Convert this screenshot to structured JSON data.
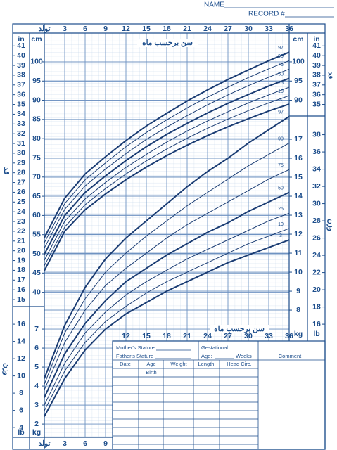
{
  "header": {
    "name_label": "NAME",
    "record_label": "RECORD #"
  },
  "chart_data": [
    {
      "type": "line",
      "xlabel": "سن برحسب ماه",
      "ylabel": "قد",
      "y_unit": "cm",
      "y2_unit": "in",
      "x": [
        0,
        3,
        6,
        9,
        12,
        15,
        18,
        21,
        24,
        27,
        30,
        33,
        36
      ],
      "xlim": [
        0,
        36
      ],
      "xticks": [
        {
          "value": 0,
          "label": "تولد"
        },
        3,
        6,
        9,
        12,
        15,
        18,
        21,
        24,
        27,
        30,
        33,
        36
      ],
      "ylim": [
        37,
        107.5
      ],
      "yticks": [
        40,
        45,
        50,
        55,
        60,
        65,
        70,
        75,
        80,
        85,
        90,
        95,
        100
      ],
      "yticks_right": [
        90,
        95,
        100
      ],
      "y2lim": [
        14.57,
        42.32
      ],
      "y2ticks": [
        15,
        16,
        17,
        18,
        19,
        20,
        21,
        22,
        23,
        24,
        25,
        26,
        27,
        28,
        29,
        30,
        31,
        32,
        33,
        34,
        35,
        36,
        37,
        38,
        39,
        40,
        41
      ],
      "y2ticks_right": [
        35,
        36,
        37,
        38,
        39,
        40,
        41
      ],
      "grid": true,
      "series": [
        {
          "name": "97",
          "color": "#1a3c73",
          "line_width": 2,
          "values": [
            54.2,
            64.5,
            70.8,
            75.3,
            79.5,
            83.3,
            86.6,
            89.8,
            92.7,
            95.4,
            97.9,
            100.3,
            102.5
          ]
        },
        {
          "name": "90",
          "color": "#1a3c73",
          "line_width": 1,
          "values": [
            52.9,
            63.1,
            69.3,
            73.7,
            77.9,
            81.6,
            84.9,
            88.0,
            90.8,
            93.4,
            95.9,
            98.2,
            100.3
          ]
        },
        {
          "name": "75",
          "color": "#1a3c73",
          "line_width": 1,
          "values": [
            51.5,
            61.6,
            67.7,
            72.1,
            76.1,
            79.8,
            83.0,
            86.0,
            88.8,
            91.4,
            93.8,
            96.0,
            98.1
          ]
        },
        {
          "name": "50",
          "color": "#1a3c73",
          "line_width": 2,
          "values": [
            49.9,
            60.0,
            66.0,
            70.3,
            74.3,
            77.9,
            81.1,
            84.0,
            86.7,
            89.2,
            91.5,
            93.7,
            95.7
          ]
        },
        {
          "name": "25",
          "color": "#1a3c73",
          "line_width": 1,
          "values": [
            48.3,
            58.5,
            64.3,
            68.6,
            72.5,
            75.9,
            79.1,
            82.0,
            84.6,
            87.0,
            89.3,
            91.4,
            93.4
          ]
        },
        {
          "name": "10",
          "color": "#1a3c73",
          "line_width": 1,
          "values": [
            46.9,
            57.0,
            62.8,
            67.0,
            70.8,
            74.2,
            77.3,
            80.1,
            82.7,
            85.1,
            87.3,
            89.3,
            91.2
          ]
        },
        {
          "name": "3",
          "color": "#1a3c73",
          "line_width": 2,
          "values": [
            45.6,
            55.9,
            61.5,
            65.6,
            69.3,
            72.6,
            75.6,
            78.3,
            80.8,
            83.1,
            85.2,
            87.2,
            89.0
          ]
        }
      ]
    },
    {
      "type": "line",
      "xlabel": "سن برحسب ماه",
      "ylabel": "وزن",
      "y_unit": "kg",
      "y2_unit": "lb",
      "x": [
        0,
        3,
        6,
        9,
        12,
        15,
        18,
        21,
        24,
        27,
        30,
        33,
        36
      ],
      "xlim": [
        0,
        36
      ],
      "xticks": [
        {
          "value": 0,
          "label": "تولد"
        },
        3,
        6,
        9,
        12,
        15,
        18,
        21,
        24,
        27,
        30,
        33,
        36
      ],
      "ylim": [
        1.3,
        18
      ],
      "yticks": [
        2,
        3,
        4,
        5,
        6,
        7
      ],
      "yticks_right": [
        8,
        9,
        10,
        11,
        12,
        13,
        14,
        15,
        16,
        17
      ],
      "y2lim": [
        2.866,
        39.68
      ],
      "y2ticks": [
        4,
        6,
        8,
        10,
        12,
        14,
        16
      ],
      "y2ticks_right": [
        16,
        18,
        20,
        22,
        24,
        26,
        28,
        30,
        32,
        34,
        36,
        38
      ],
      "grid": true,
      "series": [
        {
          "name": "97",
          "color": "#1a3c73",
          "line_width": 2,
          "values": [
            4.4,
            7.2,
            9.2,
            10.7,
            11.8,
            12.7,
            13.6,
            14.5,
            15.3,
            16.0,
            16.8,
            17.5,
            18.2
          ]
        },
        {
          "name": "90",
          "color": "#1a3c73",
          "line_width": 1,
          "values": [
            4.1,
            6.8,
            8.6,
            10.0,
            11.0,
            11.9,
            12.7,
            13.5,
            14.2,
            14.9,
            15.6,
            16.2,
            16.8
          ]
        },
        {
          "name": "75",
          "color": "#1a3c73",
          "line_width": 1,
          "values": [
            3.8,
            6.3,
            8.0,
            9.3,
            10.2,
            11.0,
            11.8,
            12.5,
            13.1,
            13.7,
            14.3,
            14.9,
            15.4
          ]
        },
        {
          "name": "50",
          "color": "#1a3c73",
          "line_width": 2,
          "values": [
            3.4,
            5.7,
            7.3,
            8.5,
            9.5,
            10.2,
            10.9,
            11.5,
            12.1,
            12.6,
            13.2,
            13.7,
            14.2
          ]
        },
        {
          "name": "25",
          "color": "#1a3c73",
          "line_width": 1,
          "values": [
            3.0,
            5.2,
            6.8,
            7.9,
            8.8,
            9.5,
            10.1,
            10.7,
            11.2,
            11.7,
            12.2,
            12.7,
            13.1
          ]
        },
        {
          "name": "10",
          "color": "#1a3c73",
          "line_width": 1,
          "values": [
            2.7,
            4.8,
            6.3,
            7.4,
            8.2,
            8.9,
            9.5,
            10.0,
            10.5,
            11.0,
            11.5,
            11.9,
            12.3
          ]
        },
        {
          "name": "3",
          "color": "#1a3c73",
          "line_width": 2,
          "values": [
            2.4,
            4.4,
            5.9,
            7.0,
            7.8,
            8.4,
            9.0,
            9.5,
            10.0,
            10.5,
            10.9,
            11.3,
            11.7
          ]
        }
      ]
    }
  ],
  "table": {
    "mother": "Mother's Stature",
    "father": "Father's Stature",
    "gestational": "Gestational",
    "age": "Age:",
    "weeks": "Weeks",
    "comment": "Comment",
    "columns": [
      "Date",
      "Age",
      "Weight",
      "Length",
      "Head Circ."
    ],
    "birth": "Birth"
  }
}
